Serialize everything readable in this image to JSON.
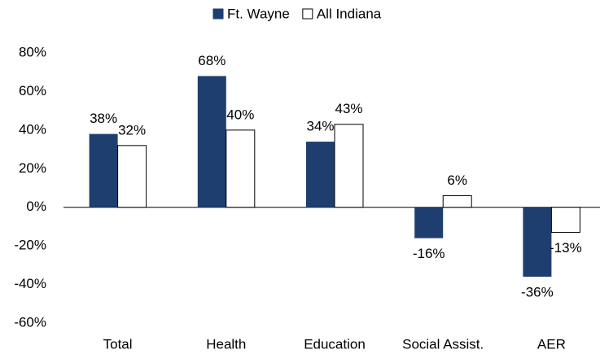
{
  "chart_data": {
    "type": "bar",
    "categories": [
      "Total",
      "Health",
      "Education",
      "Social Assist.",
      "AER"
    ],
    "series": [
      {
        "name": "Ft. Wayne",
        "color": "#1f3e70",
        "values": [
          38,
          68,
          34,
          -16,
          -36
        ],
        "value_labels": [
          "38%",
          "68%",
          "34%",
          "-16%",
          "-36%"
        ]
      },
      {
        "name": "All Indiana",
        "color": "#ffffff",
        "edgecolor": "#000000",
        "values": [
          32,
          40,
          43,
          6,
          -13
        ],
        "value_labels": [
          "32%",
          "40%",
          "43%",
          "6%",
          "-13%"
        ]
      }
    ],
    "ylim": [
      -60,
      80
    ],
    "yticks": [
      {
        "value": -60,
        "label": "-60%"
      },
      {
        "value": -40,
        "label": "-40%"
      },
      {
        "value": -20,
        "label": "-20%"
      },
      {
        "value": 0,
        "label": "0%"
      },
      {
        "value": 20,
        "label": "20%"
      },
      {
        "value": 40,
        "label": "40%"
      },
      {
        "value": 60,
        "label": "60%"
      },
      {
        "value": 80,
        "label": "80%"
      }
    ],
    "grid": false,
    "legend": "top"
  }
}
